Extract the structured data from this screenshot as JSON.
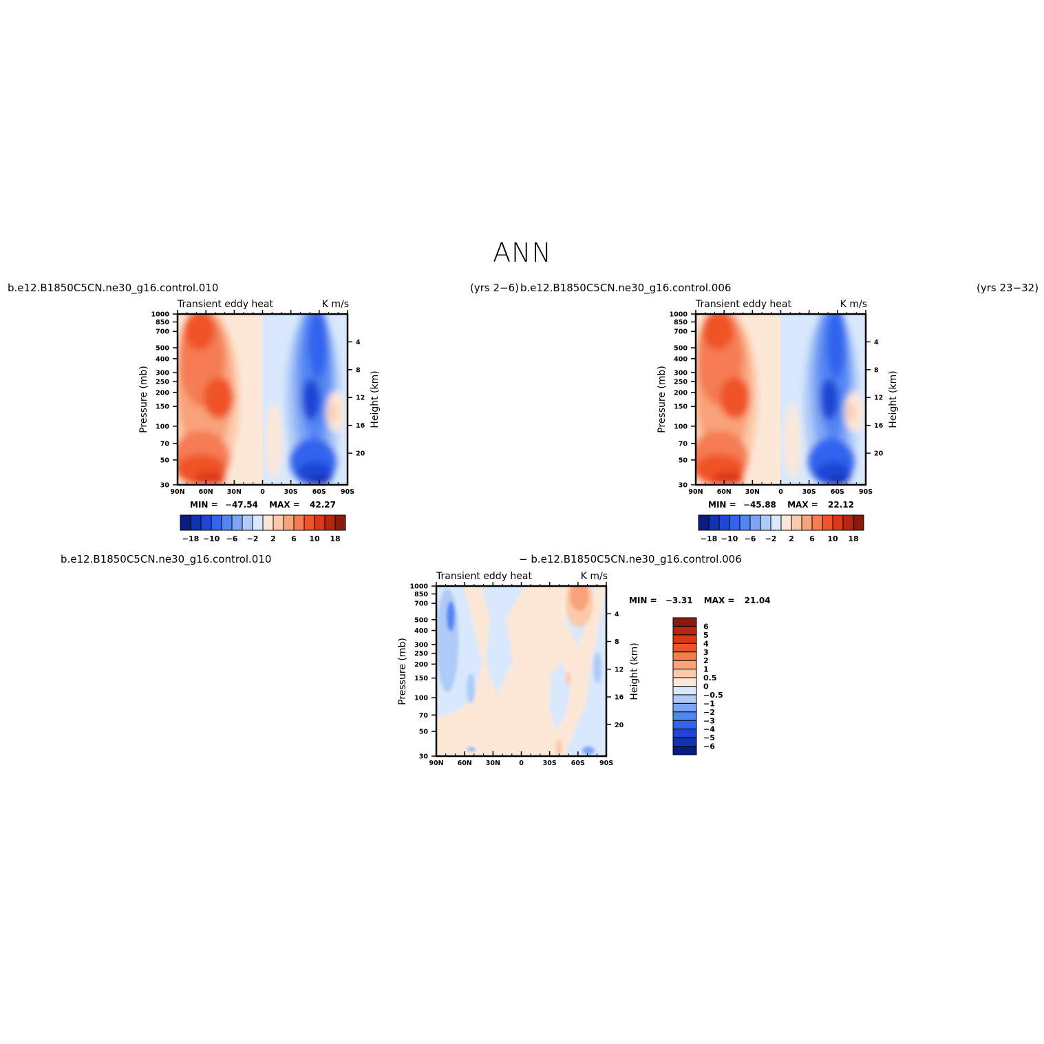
{
  "page": {
    "title": "ANN"
  },
  "colors": {
    "palette": [
      "#0a1c84",
      "#1233b0",
      "#1f46d6",
      "#3163ee",
      "#5286f3",
      "#7da6f6",
      "#aecbf8",
      "#d9e8fc",
      "#fde8d8",
      "#fccaaa",
      "#f9a37a",
      "#f57c53",
      "#ef5328",
      "#dc3716",
      "#b52712",
      "#8a1a0e"
    ]
  },
  "panels": [
    {
      "case_label": "b.e12.B1850C5CN.ne30_g16.control.010",
      "years_label": "(yrs 2−6)",
      "left_string": "Transient  eddy  heat",
      "right_string": "K  m/s",
      "ylabel": "Pressure  (mb)",
      "ylabel_right": "Height  (km)",
      "stats": {
        "min_label": "MIN  =",
        "min": "−47.54",
        "max_label": "MAX  =",
        "max": "42.27"
      },
      "xticks": [
        "90N",
        "60N",
        "30N",
        "0",
        "30S",
        "60S",
        "90S"
      ],
      "yticks": [
        "30",
        "50",
        "70",
        "100",
        "150",
        "200",
        "250",
        "300",
        "400",
        "500",
        "700",
        "850",
        "1000"
      ],
      "hticks": [
        "20",
        "16",
        "12",
        "8",
        "4"
      ],
      "colorbar_labels": [
        "−18",
        "−10",
        "−6",
        "−2",
        "2",
        "6",
        "10",
        "18"
      ]
    },
    {
      "case_label": "b.e12.B1850C5CN.ne30_g16.control.006",
      "years_label": "(yrs 23−32)",
      "left_string": "Transient  eddy  heat",
      "right_string": "K  m/s",
      "ylabel": "Pressure  (mb)",
      "ylabel_right": "Height  (km)",
      "stats": {
        "min_label": "MIN  =",
        "min": "−45.88",
        "max_label": "MAX  =",
        "max": "22.12"
      },
      "xticks": [
        "90N",
        "60N",
        "30N",
        "0",
        "30S",
        "60S",
        "90S"
      ],
      "yticks": [
        "30",
        "50",
        "70",
        "100",
        "150",
        "200",
        "250",
        "300",
        "400",
        "500",
        "700",
        "850",
        "1000"
      ],
      "hticks": [
        "20",
        "16",
        "12",
        "8",
        "4"
      ],
      "colorbar_labels": [
        "−18",
        "−10",
        "−6",
        "−2",
        "2",
        "6",
        "10",
        "18"
      ]
    },
    {
      "case_label_left": "b.e12.B1850C5CN.ne30_g16.control.010",
      "case_label_right": "−  b.e12.B1850C5CN.ne30_g16.control.006",
      "left_string": "Transient  eddy  heat",
      "right_string": "K  m/s",
      "ylabel": "Pressure  (mb)",
      "ylabel_right": "Height  (km)",
      "stats": {
        "min_label": "MIN  =",
        "min": "−3.31",
        "max_label": "MAX  =",
        "max": "21.04"
      },
      "xticks": [
        "90N",
        "60N",
        "30N",
        "0",
        "30S",
        "60S",
        "90S"
      ],
      "yticks": [
        "30",
        "50",
        "70",
        "100",
        "150",
        "200",
        "250",
        "300",
        "400",
        "500",
        "700",
        "850",
        "1000"
      ],
      "hticks": [
        "20",
        "16",
        "12",
        "8",
        "4"
      ],
      "colorbar_labels": [
        "6",
        "5",
        "4",
        "3",
        "2",
        "1",
        "0.5",
        "0",
        "−0.5",
        "−1",
        "−2",
        "−3",
        "−4",
        "−5",
        "−6"
      ]
    }
  ],
  "chart_data": [
    {
      "type": "heatmap",
      "title": "Transient  eddy  heat",
      "units": "K  m/s",
      "xlabel": "",
      "ylabel": "Pressure  (mb)",
      "y2label": "Height  (km)",
      "x_range": [
        "90N",
        "90S"
      ],
      "ylim_mb": [
        1000,
        30
      ],
      "y_scale": "log",
      "contour_levels": [
        -18,
        -14,
        -10,
        -8,
        -6,
        -4,
        -2,
        0,
        2,
        4,
        6,
        8,
        10,
        14,
        18
      ],
      "min": -47.54,
      "max": 42.27
    },
    {
      "type": "heatmap",
      "title": "Transient  eddy  heat",
      "units": "K  m/s",
      "xlabel": "",
      "ylabel": "Pressure  (mb)",
      "y2label": "Height  (km)",
      "x_range": [
        "90N",
        "90S"
      ],
      "ylim_mb": [
        1000,
        30
      ],
      "y_scale": "log",
      "contour_levels": [
        -18,
        -14,
        -10,
        -8,
        -6,
        -4,
        -2,
        0,
        2,
        4,
        6,
        8,
        10,
        14,
        18
      ],
      "min": -45.88,
      "max": 22.12
    },
    {
      "type": "heatmap",
      "title": "Transient  eddy  heat",
      "units": "K  m/s",
      "xlabel": "",
      "ylabel": "Pressure  (mb)",
      "y2label": "Height  (km)",
      "x_range": [
        "90N",
        "90S"
      ],
      "ylim_mb": [
        1000,
        30
      ],
      "y_scale": "log",
      "contour_levels": [
        -6,
        -5,
        -4,
        -3,
        -2,
        -1,
        -0.5,
        0,
        0.5,
        1,
        2,
        3,
        4,
        5,
        6
      ],
      "min": -3.31,
      "max": 21.04
    }
  ]
}
